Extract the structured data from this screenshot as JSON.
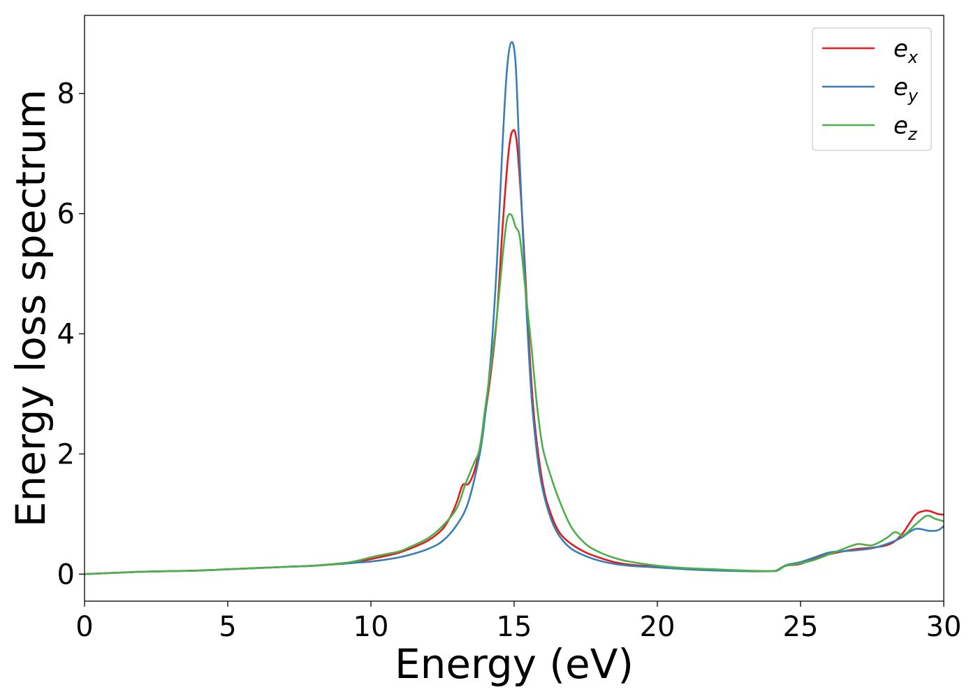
{
  "chart_data": {
    "type": "line",
    "title": "",
    "xlabel": "Energy (eV)",
    "ylabel": "Energy loss spectrum",
    "xlim": [
      0,
      30
    ],
    "ylim": [
      -0.45,
      9.3
    ],
    "xticks": [
      {
        "value": 0,
        "label": "0"
      },
      {
        "value": 5,
        "label": "5"
      },
      {
        "value": 10,
        "label": "10"
      },
      {
        "value": 15,
        "label": "15"
      },
      {
        "value": 20,
        "label": "20"
      },
      {
        "value": 25,
        "label": "25"
      },
      {
        "value": 30,
        "label": "30"
      }
    ],
    "yticks": [
      {
        "value": 0,
        "label": "0"
      },
      {
        "value": 2,
        "label": "2"
      },
      {
        "value": 4,
        "label": "4"
      },
      {
        "value": 6,
        "label": "6"
      },
      {
        "value": 8,
        "label": "8"
      }
    ],
    "grid": false,
    "legend_position": "top-right",
    "series": [
      {
        "name": "e",
        "name_subscript": "x",
        "color": "#e41a1c",
        "x": [
          0,
          1,
          2,
          3,
          4,
          5,
          6,
          7,
          8,
          9,
          9.5,
          10,
          10.5,
          11,
          11.5,
          12,
          12.5,
          12.8,
          13.0,
          13.2,
          13.4,
          13.6,
          13.8,
          14.0,
          14.2,
          14.4,
          14.6,
          14.8,
          14.95,
          15.1,
          15.3,
          15.5,
          15.7,
          16.0,
          16.3,
          16.6,
          17.0,
          17.5,
          18.0,
          18.5,
          19.0,
          20.0,
          21.0,
          22.0,
          23.0,
          24.0,
          24.2,
          24.5,
          25.0,
          25.5,
          26.0,
          26.5,
          27.0,
          27.5,
          28.0,
          28.3,
          28.6,
          29.0,
          29.3,
          29.5,
          29.8,
          30.0
        ],
        "y": [
          0.0,
          0.02,
          0.04,
          0.05,
          0.06,
          0.08,
          0.1,
          0.12,
          0.14,
          0.18,
          0.2,
          0.25,
          0.3,
          0.36,
          0.45,
          0.56,
          0.75,
          0.98,
          1.2,
          1.48,
          1.5,
          1.7,
          2.1,
          2.7,
          3.4,
          4.3,
          5.8,
          7.0,
          7.38,
          7.15,
          5.8,
          4.0,
          2.6,
          1.5,
          0.98,
          0.68,
          0.5,
          0.36,
          0.27,
          0.2,
          0.16,
          0.12,
          0.09,
          0.07,
          0.05,
          0.05,
          0.07,
          0.14,
          0.17,
          0.26,
          0.33,
          0.38,
          0.42,
          0.44,
          0.48,
          0.55,
          0.7,
          0.98,
          1.05,
          1.05,
          1.0,
          0.99
        ]
      },
      {
        "name": "e",
        "name_subscript": "y",
        "color": "#377eb8",
        "x": [
          0,
          1,
          2,
          3,
          4,
          5,
          6,
          7,
          8,
          9,
          9.5,
          10,
          10.5,
          11,
          11.5,
          12,
          12.5,
          13.0,
          13.4,
          13.8,
          14.0,
          14.2,
          14.4,
          14.6,
          14.75,
          14.9,
          15.05,
          15.2,
          15.4,
          15.6,
          15.8,
          16.0,
          16.3,
          16.6,
          17.0,
          17.5,
          18.0,
          18.5,
          19.0,
          20.0,
          21.0,
          22.0,
          23.0,
          24.0,
          24.2,
          24.5,
          25.0,
          25.5,
          26.0,
          26.5,
          27.0,
          27.5,
          28.0,
          28.5,
          29.0,
          29.5,
          29.8,
          30.0
        ],
        "y": [
          0.0,
          0.02,
          0.04,
          0.05,
          0.06,
          0.08,
          0.1,
          0.12,
          0.14,
          0.17,
          0.19,
          0.21,
          0.24,
          0.28,
          0.34,
          0.42,
          0.55,
          0.82,
          1.2,
          2.0,
          2.7,
          3.7,
          5.2,
          7.2,
          8.4,
          8.85,
          8.5,
          6.8,
          4.7,
          3.0,
          2.0,
          1.4,
          0.9,
          0.62,
          0.42,
          0.3,
          0.22,
          0.17,
          0.14,
          0.11,
          0.08,
          0.06,
          0.05,
          0.05,
          0.07,
          0.15,
          0.2,
          0.28,
          0.36,
          0.38,
          0.4,
          0.43,
          0.5,
          0.6,
          0.75,
          0.72,
          0.73,
          0.8
        ]
      },
      {
        "name": "e",
        "name_subscript": "z",
        "color": "#4daf4a",
        "x": [
          0,
          1,
          2,
          3,
          4,
          5,
          6,
          7,
          8,
          9,
          9.5,
          10,
          10.5,
          11,
          11.5,
          12,
          12.5,
          13.0,
          13.3,
          13.6,
          13.8,
          14.0,
          14.2,
          14.4,
          14.6,
          14.75,
          14.9,
          15.05,
          15.2,
          15.4,
          15.6,
          15.8,
          16.0,
          16.3,
          16.6,
          17.0,
          17.5,
          18.0,
          18.5,
          19.0,
          20.0,
          21.0,
          22.0,
          23.0,
          24.0,
          24.2,
          24.5,
          25.0,
          25.5,
          26.0,
          26.5,
          27.0,
          27.5,
          28.0,
          28.3,
          28.6,
          29.0,
          29.4,
          29.7,
          30.0
        ],
        "y": [
          0.0,
          0.02,
          0.04,
          0.05,
          0.06,
          0.08,
          0.1,
          0.12,
          0.14,
          0.18,
          0.22,
          0.28,
          0.33,
          0.38,
          0.48,
          0.6,
          0.8,
          1.1,
          1.5,
          1.85,
          2.1,
          2.8,
          3.5,
          4.3,
          5.3,
          5.9,
          5.98,
          5.78,
          5.6,
          4.7,
          3.8,
          2.8,
          2.1,
          1.6,
          1.2,
          0.78,
          0.5,
          0.36,
          0.27,
          0.21,
          0.14,
          0.1,
          0.08,
          0.06,
          0.05,
          0.06,
          0.14,
          0.18,
          0.24,
          0.33,
          0.42,
          0.5,
          0.48,
          0.6,
          0.7,
          0.65,
          0.82,
          0.97,
          0.92,
          0.88
        ]
      }
    ]
  }
}
